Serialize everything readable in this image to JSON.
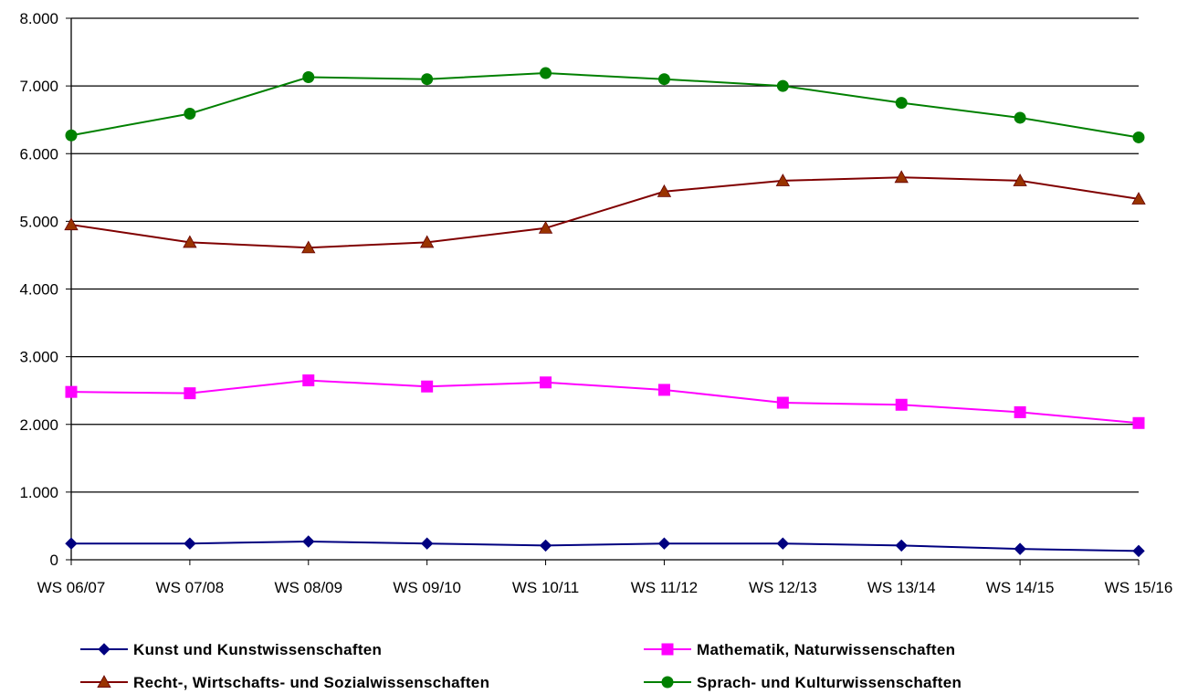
{
  "chart_data": {
    "type": "line",
    "categories": [
      "WS 06/07",
      "WS 07/08",
      "WS 08/09",
      "WS 09/10",
      "WS 10/11",
      "WS 11/12",
      "WS 12/13",
      "WS 13/14",
      "WS 14/15",
      "WS 15/16"
    ],
    "y_ticks": [
      0,
      1000,
      2000,
      3000,
      4000,
      5000,
      6000,
      7000,
      8000
    ],
    "y_tick_labels": [
      "0",
      "1.000",
      "2.000",
      "3.000",
      "4.000",
      "5.000",
      "6.000",
      "7.000",
      "8.000"
    ],
    "ylim": [
      0,
      8000
    ],
    "grid": "horizontal",
    "legend_position": "bottom",
    "series": [
      {
        "name": "Kunst und Kunstwissenschaften",
        "color": "#000080",
        "marker": "diamond",
        "values": [
          240,
          240,
          270,
          240,
          210,
          240,
          240,
          210,
          160,
          130
        ]
      },
      {
        "name": "Mathematik, Naturwissenschaften",
        "color": "#ff00ff",
        "marker": "square",
        "values": [
          2480,
          2460,
          2650,
          2560,
          2620,
          2510,
          2320,
          2290,
          2180,
          2020
        ]
      },
      {
        "name": "Recht-, Wirtschafts- und Sozialwissenschaften",
        "color": "#800000",
        "marker_color": "#993300",
        "marker": "triangle",
        "values": [
          4950,
          4690,
          4610,
          4690,
          4900,
          5440,
          5600,
          5650,
          5600,
          5330
        ]
      },
      {
        "name": "Sprach- und Kulturwissenschaften",
        "color": "#008000",
        "marker": "circle",
        "values": [
          6270,
          6590,
          7130,
          7100,
          7190,
          7100,
          7000,
          6750,
          6530,
          6240
        ]
      }
    ],
    "xlabel": "",
    "ylabel": ""
  }
}
